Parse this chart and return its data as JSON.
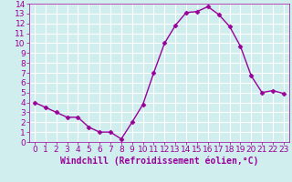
{
  "x": [
    0,
    1,
    2,
    3,
    4,
    5,
    6,
    7,
    8,
    9,
    10,
    11,
    12,
    13,
    14,
    15,
    16,
    17,
    18,
    19,
    20,
    21,
    22,
    23
  ],
  "y": [
    4.0,
    3.5,
    3.0,
    2.5,
    2.5,
    1.5,
    1.0,
    1.0,
    0.3,
    2.0,
    3.8,
    7.0,
    10.0,
    11.8,
    13.1,
    13.2,
    13.7,
    12.9,
    11.7,
    9.7,
    6.7,
    5.0,
    5.2,
    4.9
  ],
  "line_color": "#990099",
  "marker": "D",
  "marker_size": 2.5,
  "bg_color": "#d0eeee",
  "grid_color": "#ffffff",
  "xlabel": "Windchill (Refroidissement éolien,°C)",
  "xlabel_color": "#990099",
  "tick_color": "#990099",
  "xlim": [
    -0.5,
    23.5
  ],
  "ylim": [
    0,
    14
  ],
  "yticks": [
    0,
    1,
    2,
    3,
    4,
    5,
    6,
    7,
    8,
    9,
    10,
    11,
    12,
    13,
    14
  ],
  "xticks": [
    0,
    1,
    2,
    3,
    4,
    5,
    6,
    7,
    8,
    9,
    10,
    11,
    12,
    13,
    14,
    15,
    16,
    17,
    18,
    19,
    20,
    21,
    22,
    23
  ],
  "font_size": 6.5,
  "label_font_size": 7.0
}
